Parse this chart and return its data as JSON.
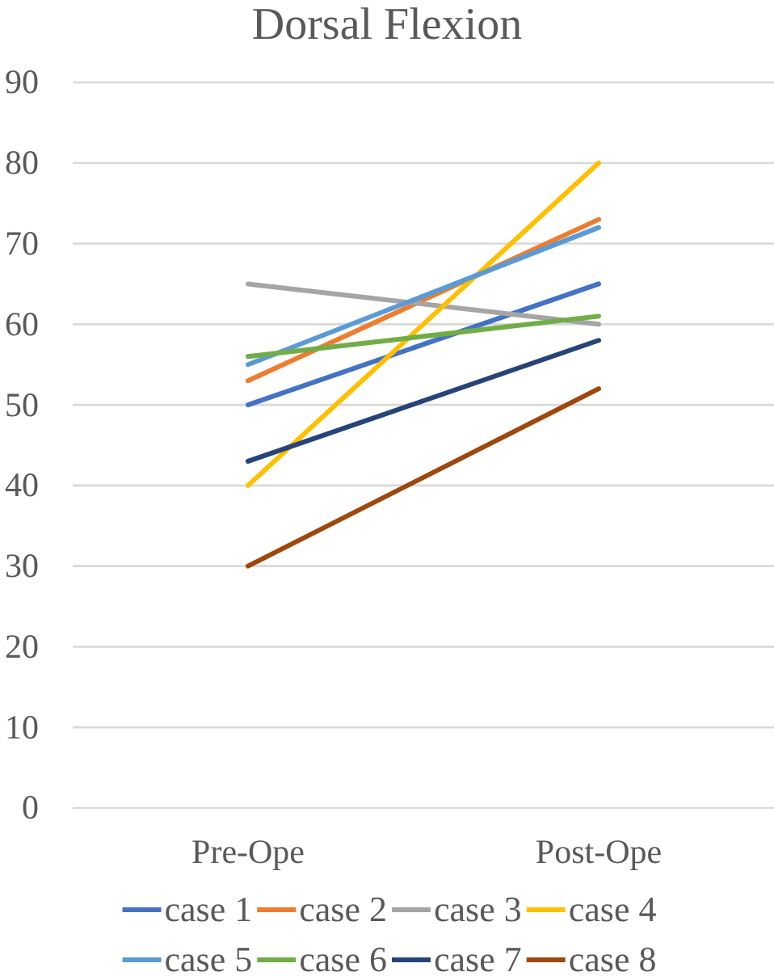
{
  "chart_data": {
    "type": "line",
    "title": "Dorsal Flexion",
    "categories": [
      "Pre-Ope",
      "Post-Ope"
    ],
    "series": [
      {
        "name": "case 1",
        "color": "#4472c4",
        "values": [
          50,
          65
        ]
      },
      {
        "name": "case 2",
        "color": "#ed7d31",
        "values": [
          53,
          73
        ]
      },
      {
        "name": "case 3",
        "color": "#a5a5a5",
        "values": [
          65,
          60
        ]
      },
      {
        "name": "case 4",
        "color": "#ffc000",
        "values": [
          40,
          80
        ]
      },
      {
        "name": "case 5",
        "color": "#5b9bd5",
        "values": [
          55,
          72
        ]
      },
      {
        "name": "case 6",
        "color": "#70ad47",
        "values": [
          56,
          61
        ]
      },
      {
        "name": "case 7",
        "color": "#264478",
        "values": [
          43,
          58
        ]
      },
      {
        "name": "case 8",
        "color": "#9e480e",
        "values": [
          30,
          52
        ]
      }
    ],
    "ylim": [
      0,
      90
    ],
    "yticks": [
      0,
      10,
      20,
      30,
      40,
      50,
      60,
      70,
      80,
      90
    ],
    "grid": "y",
    "legend": "bottom"
  }
}
